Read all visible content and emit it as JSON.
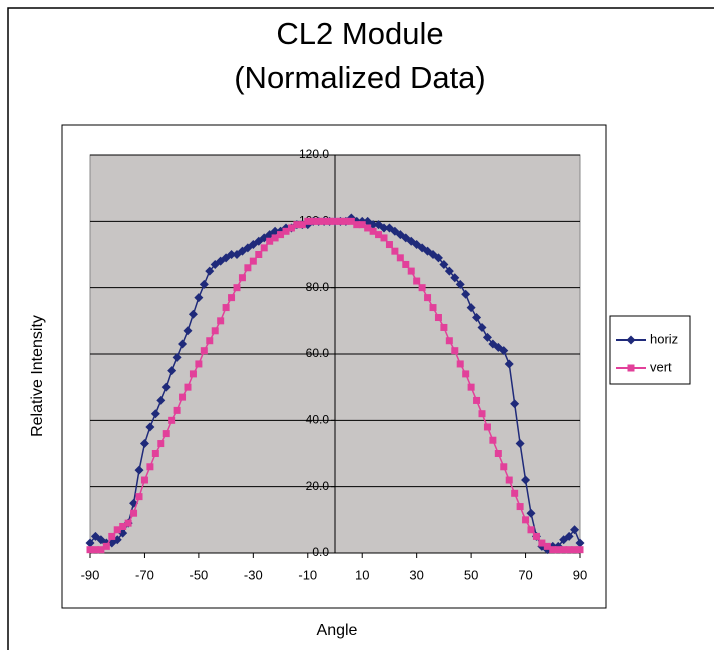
{
  "chart_data": {
    "type": "line",
    "title": "CL2 Module",
    "subtitle": "(Normalized Data)",
    "x_label": "Angle",
    "y_label": "Relative Intensity",
    "x": [
      -90,
      -88,
      -86,
      -84,
      -82,
      -80,
      -78,
      -76,
      -74,
      -72,
      -70,
      -68,
      -66,
      -64,
      -62,
      -60,
      -58,
      -56,
      -54,
      -52,
      -50,
      -48,
      -46,
      -44,
      -42,
      -40,
      -38,
      -36,
      -34,
      -32,
      -30,
      -28,
      -26,
      -24,
      -22,
      -20,
      -18,
      -16,
      -14,
      -12,
      -10,
      -8,
      -6,
      -4,
      -2,
      0,
      2,
      4,
      6,
      8,
      10,
      12,
      14,
      16,
      18,
      20,
      22,
      24,
      26,
      28,
      30,
      32,
      34,
      36,
      38,
      40,
      42,
      44,
      46,
      48,
      50,
      52,
      54,
      56,
      58,
      60,
      62,
      64,
      66,
      68,
      70,
      72,
      74,
      76,
      78,
      80,
      82,
      84,
      86,
      88,
      90
    ],
    "series": [
      {
        "name": "horiz",
        "color": "#1f2a7a",
        "marker": "diamond",
        "values": [
          3,
          5,
          4,
          3,
          3,
          4,
          6,
          9,
          15,
          25,
          33,
          38,
          42,
          46,
          50,
          55,
          59,
          63,
          67,
          72,
          77,
          81,
          85,
          87,
          88,
          89,
          90,
          90,
          91,
          92,
          93,
          94,
          95,
          96,
          97,
          97,
          98,
          98,
          99,
          99,
          99,
          100,
          100,
          100,
          100,
          100,
          100,
          100,
          101,
          100,
          100,
          100,
          99,
          99,
          98,
          98,
          97,
          96,
          95,
          94,
          93,
          92,
          91,
          90,
          89,
          87,
          85,
          83,
          81,
          78,
          74,
          71,
          68,
          65,
          63,
          62,
          61,
          57,
          45,
          33,
          22,
          12,
          5,
          2,
          1,
          2,
          2,
          4,
          5,
          7,
          3
        ]
      },
      {
        "name": "vert",
        "color": "#e2409a",
        "marker": "square",
        "values": [
          1,
          1,
          1,
          2,
          5,
          7,
          8,
          9,
          12,
          17,
          22,
          26,
          30,
          33,
          36,
          40,
          43,
          47,
          50,
          54,
          57,
          61,
          64,
          67,
          70,
          74,
          77,
          80,
          83,
          86,
          88,
          90,
          92,
          94,
          95,
          96,
          97,
          98,
          99,
          99,
          100,
          100,
          100,
          100,
          100,
          100,
          100,
          100,
          100,
          99,
          99,
          98,
          97,
          96,
          95,
          93,
          91,
          89,
          87,
          85,
          82,
          80,
          77,
          74,
          71,
          68,
          64,
          61,
          57,
          54,
          50,
          46,
          42,
          38,
          34,
          30,
          26,
          22,
          18,
          14,
          10,
          7,
          5,
          3,
          2,
          1,
          1,
          1,
          1,
          1,
          1
        ]
      }
    ],
    "xlim": [
      -90,
      90
    ],
    "xticks": [
      -90,
      -70,
      -50,
      -30,
      -10,
      10,
      30,
      50,
      70,
      90
    ],
    "ylim": [
      0,
      120
    ],
    "yticks": [
      {
        "value": 0,
        "label": "0.0"
      },
      {
        "value": 20,
        "label": "20.0"
      },
      {
        "value": 40,
        "label": "40.0"
      },
      {
        "value": 60,
        "label": "60.0"
      },
      {
        "value": 80,
        "label": "80.0"
      },
      {
        "value": 100,
        "label": "100.0"
      },
      {
        "value": 120,
        "label": "120.0"
      }
    ],
    "grid": true,
    "legend": "right"
  }
}
